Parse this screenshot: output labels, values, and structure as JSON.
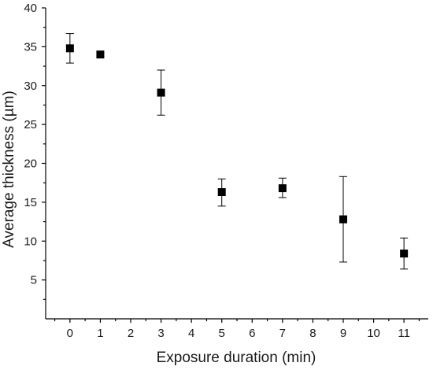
{
  "chart_data": {
    "type": "scatter",
    "title": "",
    "xlabel": "Exposure duration (min)",
    "ylabel": "Average thickness (µm)",
    "xlim": [
      -0.8,
      11.8
    ],
    "ylim": [
      0,
      40
    ],
    "xticks": [
      0,
      1,
      2,
      3,
      4,
      5,
      6,
      7,
      8,
      9,
      10,
      11
    ],
    "yticks": [
      5,
      10,
      15,
      20,
      25,
      30,
      35,
      40
    ],
    "grid": false,
    "marker": "filled-square",
    "series": [
      {
        "points": [
          {
            "x": 0,
            "y": 34.8,
            "err_low": 32.9,
            "err_high": 36.7
          },
          {
            "x": 1,
            "y": 34.0,
            "err_low": 33.8,
            "err_high": 34.2
          },
          {
            "x": 3,
            "y": 29.1,
            "err_low": 26.2,
            "err_high": 32.0
          },
          {
            "x": 5,
            "y": 16.3,
            "err_low": 14.5,
            "err_high": 18.0
          },
          {
            "x": 7,
            "y": 16.8,
            "err_low": 15.6,
            "err_high": 18.1
          },
          {
            "x": 9,
            "y": 12.8,
            "err_low": 7.3,
            "err_high": 18.3
          },
          {
            "x": 11,
            "y": 8.4,
            "err_low": 6.4,
            "err_high": 10.4
          }
        ]
      }
    ]
  }
}
